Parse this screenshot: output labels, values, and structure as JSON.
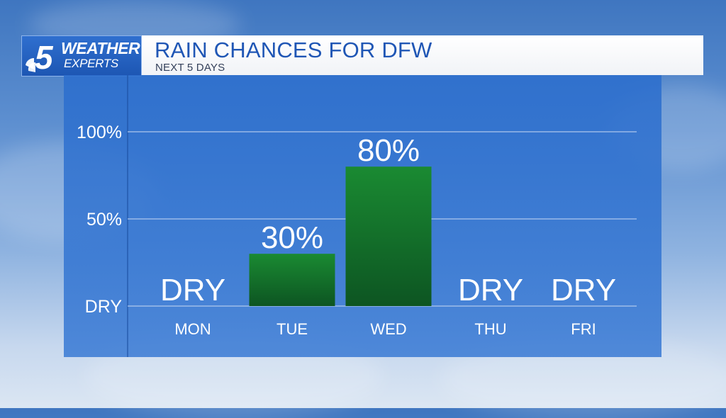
{
  "logo": {
    "line1": "WEATHER",
    "line2": "EXPERTS",
    "channel_number": "5"
  },
  "header": {
    "title": "RAIN CHANCES FOR DFW",
    "subtitle": "NEXT 5 DAYS"
  },
  "colors": {
    "bar": "#137a2e",
    "panel": "#2f6fcd",
    "title": "#1f56b5",
    "text": "#ffffff"
  },
  "chart_data": {
    "type": "bar",
    "categories": [
      "MON",
      "TUE",
      "WED",
      "THU",
      "FRI"
    ],
    "values": [
      0,
      30,
      80,
      0,
      0
    ],
    "labels": [
      "DRY",
      "30%",
      "80%",
      "DRY",
      "DRY"
    ],
    "yticks": [
      {
        "value": 0,
        "label": "DRY"
      },
      {
        "value": 50,
        "label": "50%"
      },
      {
        "value": 100,
        "label": "100%"
      }
    ],
    "ylim": [
      0,
      100
    ],
    "grid": true
  }
}
